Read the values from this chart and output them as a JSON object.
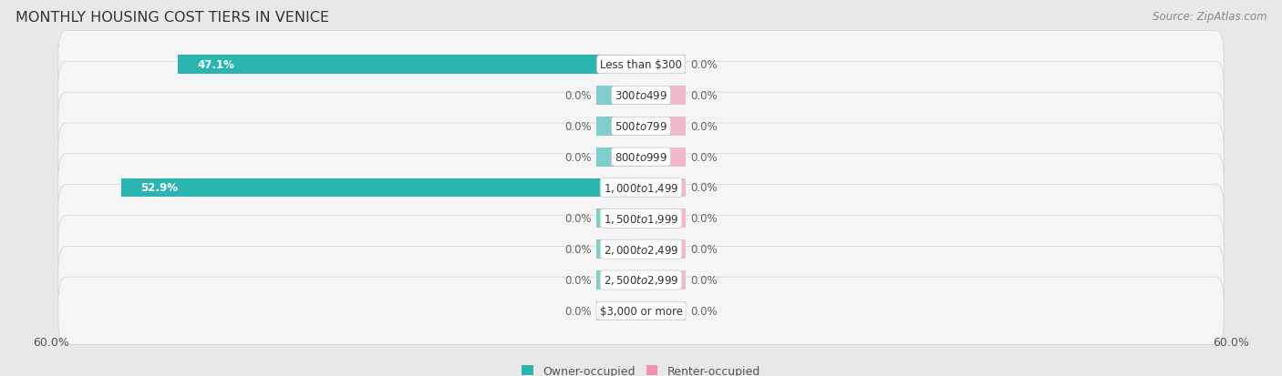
{
  "title": "MONTHLY HOUSING COST TIERS IN VENICE",
  "source": "Source: ZipAtlas.com",
  "categories": [
    "Less than $300",
    "$300 to $499",
    "$500 to $799",
    "$800 to $999",
    "$1,000 to $1,499",
    "$1,500 to $1,999",
    "$2,000 to $2,499",
    "$2,500 to $2,999",
    "$3,000 or more"
  ],
  "owner_values": [
    47.1,
    0.0,
    0.0,
    0.0,
    52.9,
    0.0,
    0.0,
    0.0,
    0.0
  ],
  "renter_values": [
    0.0,
    0.0,
    0.0,
    0.0,
    0.0,
    0.0,
    0.0,
    0.0,
    0.0
  ],
  "owner_color_full": "#2ab5b0",
  "owner_color_zero": "#7ecece",
  "renter_color_full": "#f48fb1",
  "renter_color_zero": "#f4b8cc",
  "axis_limit": 60.0,
  "zero_stub": 4.5,
  "bar_height": 0.62,
  "background_color": "#e8e8e8",
  "row_bg_color": "#f5f5f5",
  "row_outline_color": "#d0d0d0",
  "title_fontsize": 11.5,
  "source_fontsize": 8.5,
  "label_fontsize": 8.5,
  "cat_fontsize": 8.5,
  "tick_fontsize": 9,
  "legend_fontsize": 9
}
